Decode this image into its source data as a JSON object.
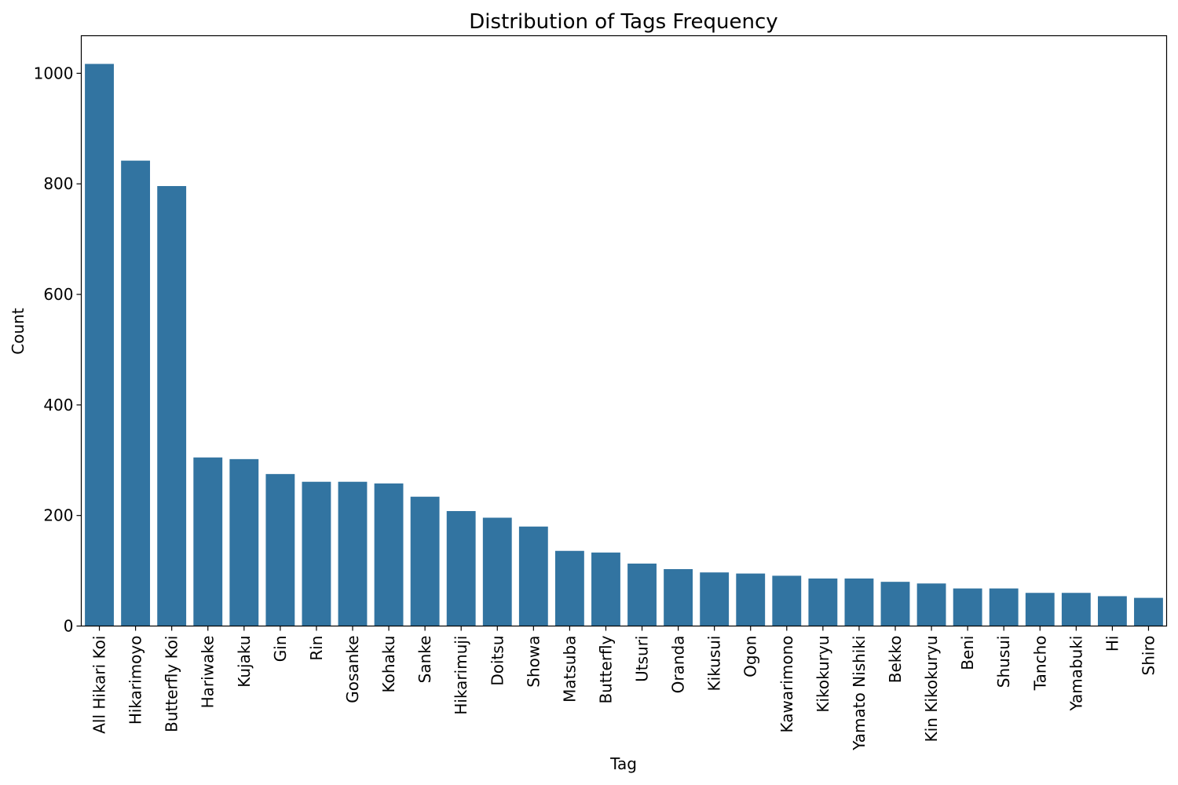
{
  "chart_data": {
    "type": "bar",
    "title": "Distribution of Tags Frequency",
    "xlabel": "Tag",
    "ylabel": "Count",
    "ylim": [
      0,
      1068
    ],
    "yticks": [
      0,
      200,
      400,
      600,
      800,
      1000
    ],
    "grid": false,
    "legend": "none",
    "bar_color": "#3274a1",
    "categories": [
      "All Hikari Koi",
      "Hikarimoyo",
      "Butterfly Koi",
      "Hariwake",
      "Kujaku",
      "Gin",
      "Rin",
      "Gosanke",
      "Kohaku",
      "Sanke",
      "Hikarimuji",
      "Doitsu",
      "Showa",
      "Matsuba",
      "Butterfly",
      "Utsuri",
      "Oranda",
      "Kikusui",
      "Ogon",
      "Kawarimono",
      "Kikokuryu",
      "Yamato Nishiki",
      "Bekko",
      "Kin Kikokuryu",
      "Beni",
      "Shusui",
      "Tancho",
      "Yamabuki",
      "Hi",
      "Shiro"
    ],
    "values": [
      1017,
      842,
      796,
      305,
      302,
      275,
      261,
      261,
      258,
      234,
      208,
      196,
      180,
      136,
      133,
      113,
      103,
      97,
      95,
      91,
      86,
      86,
      80,
      77,
      68,
      68,
      60,
      60,
      54,
      51
    ]
  }
}
